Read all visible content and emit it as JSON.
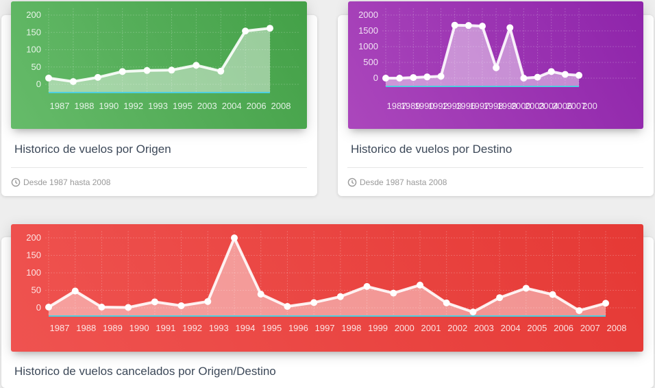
{
  "cards": [
    {
      "title": "Historico de vuelos por Origen",
      "footer": "Desde 1987 hasta 2008",
      "color": "#4caf50"
    },
    {
      "title": "Historico de vuelos por Destino",
      "footer": "Desde 1987 hasta 2008",
      "color": "#9c27b0"
    },
    {
      "title": "Historico de vuelos cancelados por Origen/Destino",
      "color": "#f44336"
    }
  ],
  "chart_data": [
    {
      "type": "area",
      "categories": [
        "1987",
        "1988",
        "1990",
        "1992",
        "1993",
        "1995",
        "2003",
        "2004",
        "2006",
        "2008"
      ],
      "series": [
        {
          "values": [
            18,
            8,
            20,
            37,
            40,
            41,
            55,
            38,
            154,
            162
          ]
        }
      ],
      "y_ticks": [
        "200",
        "150",
        "100",
        "50",
        "0"
      ],
      "ylim": [
        0,
        200
      ],
      "grid": true
    },
    {
      "type": "area",
      "categories": [
        "1987",
        "1989",
        "1990",
        "1992",
        "1993",
        "1996",
        "1997",
        "1998",
        "1999",
        "2000",
        "2003",
        "2004",
        "2006",
        "2007",
        "200"
      ],
      "series": [
        {
          "values": [
            0,
            0,
            20,
            40,
            60,
            1680,
            1670,
            1650,
            330,
            1600,
            0,
            30,
            210,
            120,
            90
          ]
        }
      ],
      "y_ticks": [
        "2000",
        "1500",
        "1000",
        "500",
        "0"
      ],
      "ylim": [
        0,
        2000
      ],
      "grid": true
    },
    {
      "type": "area",
      "categories": [
        "1987",
        "1988",
        "1989",
        "1990",
        "1991",
        "1992",
        "1993",
        "1994",
        "1995",
        "1996",
        "1997",
        "1998",
        "1999",
        "2000",
        "2001",
        "2002",
        "2003",
        "2004",
        "2005",
        "2006",
        "2007",
        "2008"
      ],
      "series": [
        {
          "values": [
            2,
            48,
            2,
            1,
            17,
            6,
            18,
            200,
            39,
            4,
            15,
            32,
            61,
            42,
            65,
            14,
            -12,
            29,
            56,
            38,
            -8,
            13
          ]
        }
      ],
      "y_ticks": [
        "200",
        "150",
        "100",
        "50",
        "0"
      ],
      "ylim": [
        0,
        200
      ],
      "grid": true
    }
  ]
}
